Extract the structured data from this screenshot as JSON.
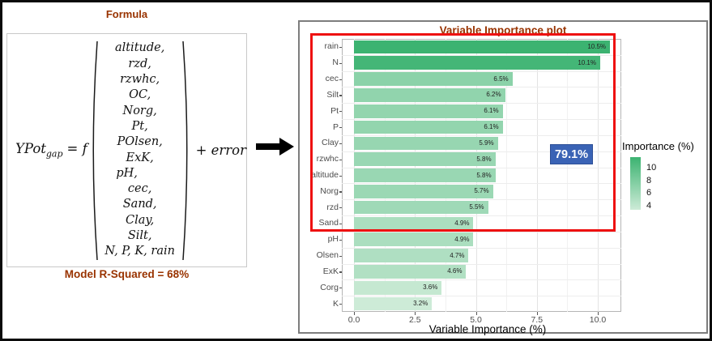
{
  "formula_panel": {
    "title": "Formula",
    "equation": {
      "lhs_main": "YPot",
      "lhs_sub": "gap",
      "operator": "= f",
      "variables": [
        "altitude,",
        "rzd,",
        "rzwhc,",
        "OC,",
        "Norg,",
        "Pt,",
        "POlsen,",
        "ExK,",
        "pH,",
        "cec,",
        "Sand,",
        "Clay,",
        "Silt,",
        "N, P, K, rain"
      ],
      "tail": "+ error"
    },
    "r_squared_note": "Model R-Squared = 68%"
  },
  "chart_panel": {
    "title": "Variable Importance plot",
    "annotation_badge": "79.1%",
    "xlabel": "Variable Importance (%)",
    "legend_title": "Importance (%)"
  },
  "chart_data": {
    "type": "bar",
    "orientation": "horizontal",
    "title": "Variable Importance plot",
    "xlabel": "Variable Importance (%)",
    "ylabel": "",
    "categories": [
      "rain",
      "N",
      "cec",
      "Silt",
      "Pt",
      "P",
      "Clay",
      "rzwhc",
      "altitude",
      "Norg",
      "rzd",
      "Sand",
      "pH",
      "Olsen",
      "ExK",
      "Corg",
      "K"
    ],
    "values": [
      10.5,
      10.1,
      6.5,
      6.2,
      6.1,
      6.1,
      5.9,
      5.8,
      5.8,
      5.7,
      5.5,
      4.9,
      4.9,
      4.7,
      4.6,
      3.6,
      3.2
    ],
    "value_label_suffix": "%",
    "xlim": [
      0,
      11
    ],
    "x_major_ticks": [
      0,
      2.5,
      5,
      7.5,
      10
    ],
    "x_minor_ticks": [
      1.25,
      3.75,
      6.25,
      8.75
    ],
    "x_tick_labels": [
      "0.0",
      "2.5",
      "5.0",
      "7.5",
      "10.0"
    ],
    "grid": true,
    "legend": {
      "title": "Importance (%)",
      "ticks": [
        "10",
        "8",
        "6",
        "4"
      ],
      "position": "right"
    },
    "color_scale": {
      "low_color": "#cdebd7",
      "high_color": "#3cb371",
      "low_value": 3.2,
      "high_value": 10.5
    },
    "highlight": {
      "rows_enclosed": 12,
      "cumulative_label": "79.1%"
    }
  },
  "colors": {
    "heading": "#993300",
    "figure_border": "#0b0b0b",
    "chart_panel_border": "#7d7d7d",
    "plot_border": "#b5b5b5",
    "grid_major": "#e3e3e3",
    "grid_minor": "#f1f1f1",
    "axis_text": "#4d4d4d",
    "bar_label_text": "#222222",
    "highlight_red": "#ee1111",
    "badge_blue": "#3a63b5",
    "badge_text": "#ffffff"
  }
}
